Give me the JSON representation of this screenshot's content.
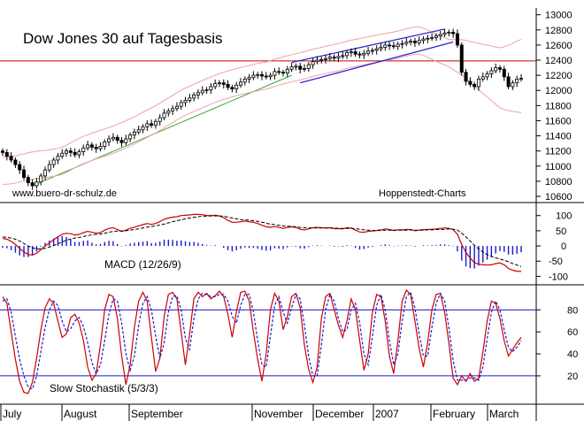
{
  "chart_data": [
    {
      "type": "candlestick",
      "title": "Dow Jones 30 auf Tagesbasis",
      "source_left": "www.buero-dr-schulz.de",
      "source_right": "Hoppenstedt-Charts",
      "y_ticks": [
        10600,
        10800,
        11000,
        11200,
        11400,
        11600,
        11800,
        12000,
        12200,
        12400,
        12600,
        12800,
        13000
      ],
      "ylim": [
        10530,
        13090
      ],
      "resistance_level": 12390,
      "series": [
        {
          "name": "close",
          "values": [
            11180,
            11130,
            11080,
            11020,
            10950,
            10850,
            10780,
            10740,
            10790,
            10870,
            10950,
            11020,
            11080,
            11130,
            11170,
            11200,
            11180,
            11150,
            11190,
            11240,
            11280,
            11250,
            11230,
            11260,
            11320,
            11360,
            11380,
            11340,
            11310,
            11360,
            11410,
            11450,
            11480,
            11520,
            11560,
            11540,
            11590,
            11640,
            11700,
            11730,
            11760,
            11790,
            11840,
            11870,
            11900,
            11940,
            11970,
            12000,
            12010,
            12050,
            12090,
            12100,
            12080,
            12040,
            12020,
            12070,
            12110,
            12150,
            12170,
            12200,
            12210,
            12190,
            12180,
            12200,
            12250,
            12240,
            12230,
            12280,
            12310,
            12320,
            12280,
            12290,
            12340,
            12380,
            12400,
            12410,
            12420,
            12440,
            12430,
            12450,
            12460,
            12500,
            12510,
            12480,
            12470,
            12490,
            12520,
            12530,
            12550,
            12570,
            12600,
            12590,
            12580,
            12610,
            12620,
            12640,
            12650,
            12630,
            12660,
            12680,
            12690,
            12700,
            12720,
            12740,
            12760,
            12770,
            12750,
            12600,
            12240,
            12120,
            12080,
            12050,
            12150,
            12180,
            12220,
            12260,
            12300,
            12280,
            12180,
            12050,
            12100,
            12150,
            12160
          ]
        }
      ]
    },
    {
      "type": "line",
      "label": "MACD (12/26/9)",
      "y_ticks": [
        100,
        50,
        0,
        -50,
        -100
      ],
      "ylim": [
        -125,
        140
      ],
      "series": [
        {
          "name": "macd",
          "values": [
            25,
            22,
            15,
            5,
            -8,
            -20,
            -28,
            -30,
            -24,
            -12,
            0,
            10,
            20,
            30,
            38,
            42,
            40,
            36,
            38,
            44,
            48,
            45,
            42,
            44,
            52,
            58,
            60,
            54,
            48,
            52,
            58,
            62,
            66,
            70,
            74,
            71,
            74,
            80,
            88,
            92,
            95,
            96,
            100,
            101,
            102,
            104,
            104,
            103,
            100,
            100,
            101,
            99,
            93,
            84,
            78,
            78,
            80,
            82,
            80,
            78,
            74,
            68,
            63,
            61,
            64,
            61,
            58,
            61,
            63,
            61,
            55,
            53,
            56,
            60,
            61,
            60,
            59,
            60,
            57,
            57,
            56,
            60,
            59,
            52,
            46,
            45,
            48,
            49,
            51,
            53,
            56,
            54,
            51,
            53,
            53,
            54,
            54,
            50,
            52,
            54,
            54,
            55,
            56,
            58,
            59,
            58,
            54,
            38,
            5,
            -22,
            -40,
            -55,
            -60,
            -62,
            -63,
            -62,
            -58,
            -56,
            -62,
            -74,
            -80,
            -83,
            -84
          ]
        },
        {
          "name": "signal",
          "values": [
            30,
            28,
            26,
            22,
            16,
            8,
            0,
            -6,
            -10,
            -10,
            -8,
            -4,
            1,
            7,
            13,
            19,
            23,
            26,
            28,
            31,
            34,
            37,
            38,
            39,
            42,
            45,
            48,
            49,
            49,
            50,
            52,
            54,
            56,
            59,
            62,
            64,
            66,
            69,
            72,
            76,
            80,
            83,
            86,
            89,
            92,
            94,
            96,
            98,
            98,
            99,
            99,
            99,
            98,
            95,
            92,
            89,
            87,
            86,
            85,
            83,
            81,
            78,
            75,
            72,
            70,
            68,
            66,
            65,
            64,
            63,
            61,
            60,
            59,
            59,
            59,
            59,
            59,
            59,
            59,
            58,
            58,
            58,
            58,
            57,
            55,
            53,
            52,
            51,
            51,
            51,
            52,
            52,
            52,
            52,
            52,
            52,
            53,
            52,
            52,
            52,
            53,
            53,
            54,
            54,
            55,
            56,
            55,
            52,
            42,
            30,
            16,
            2,
            -10,
            -20,
            -28,
            -35,
            -39,
            -43,
            -47,
            -52,
            -58,
            -63,
            -68
          ]
        }
      ]
    },
    {
      "type": "line",
      "label": "Slow Stochastik (5/3/3)",
      "y_ticks": [
        80,
        60,
        40,
        20
      ],
      "ylim": [
        -5,
        102
      ],
      "reference_lines": [
        80,
        20
      ],
      "series": [
        {
          "name": "%K",
          "values": [
            92,
            86,
            60,
            35,
            15,
            5,
            4,
            14,
            36,
            62,
            82,
            90,
            86,
            70,
            55,
            58,
            73,
            76,
            68,
            52,
            28,
            16,
            22,
            48,
            80,
            94,
            92,
            72,
            38,
            12,
            30,
            64,
            88,
            96,
            88,
            55,
            24,
            36,
            74,
            94,
            96,
            90,
            60,
            30,
            58,
            90,
            96,
            92,
            95,
            90,
            93,
            97,
            92,
            76,
            55,
            78,
            96,
            97,
            88,
            60,
            35,
            15,
            40,
            80,
            95,
            88,
            62,
            74,
            92,
            95,
            82,
            48,
            26,
            14,
            28,
            72,
            92,
            95,
            80,
            66,
            55,
            70,
            90,
            80,
            52,
            25,
            40,
            78,
            94,
            92,
            70,
            38,
            22,
            52,
            88,
            98,
            94,
            70,
            45,
            28,
            50,
            80,
            94,
            95,
            78,
            50,
            18,
            12,
            20,
            15,
            22,
            15,
            18,
            42,
            70,
            88,
            86,
            72,
            52,
            38,
            44,
            50,
            55
          ]
        },
        {
          "name": "%D",
          "values": [
            88,
            90,
            78,
            56,
            35,
            20,
            10,
            8,
            20,
            42,
            64,
            80,
            88,
            84,
            70,
            60,
            63,
            70,
            73,
            65,
            50,
            32,
            22,
            30,
            52,
            76,
            90,
            88,
            68,
            40,
            25,
            38,
            66,
            86,
            92,
            80,
            56,
            36,
            50,
            78,
            92,
            93,
            80,
            54,
            44,
            72,
            90,
            95,
            94,
            92,
            92,
            94,
            94,
            88,
            74,
            68,
            84,
            94,
            94,
            78,
            52,
            30,
            28,
            56,
            84,
            92,
            78,
            68,
            82,
            94,
            90,
            66,
            38,
            20,
            20,
            48,
            80,
            94,
            88,
            72,
            60,
            62,
            80,
            86,
            68,
            40,
            30,
            56,
            84,
            94,
            80,
            52,
            30,
            40,
            70,
            92,
            96,
            82,
            58,
            38,
            38,
            64,
            86,
            95,
            88,
            64,
            34,
            16,
            16,
            16,
            18,
            18,
            16,
            28,
            54,
            78,
            88,
            80,
            62,
            46,
            42,
            46,
            52
          ]
        }
      ]
    },
    {
      "type": "axis",
      "x_labels": [
        "July",
        "August",
        "September",
        "November",
        "December",
        "2007",
        "February",
        "March"
      ]
    }
  ]
}
